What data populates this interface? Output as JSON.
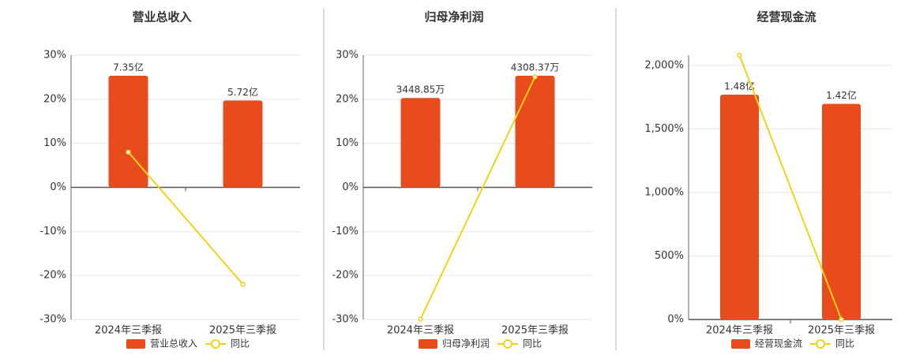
{
  "chart_data": [
    {
      "type": "bar-line",
      "title": "营业总收入",
      "categories": [
        "2024年三季报",
        "2025年三季报"
      ],
      "series": [
        {
          "name": "营业总收入",
          "color": "#e84b1c",
          "axis": "y2",
          "values": [
            7.35,
            5.72
          ],
          "value_labels": [
            "7.35亿",
            "5.72亿"
          ]
        },
        {
          "name": "同比",
          "color": "#f2d21b",
          "values": [
            8.0,
            -22.0
          ]
        }
      ],
      "ylim": [
        -30,
        30
      ],
      "yticks": [
        {
          "value": -30,
          "label": "-30%"
        },
        {
          "value": -20,
          "label": "-20%"
        },
        {
          "value": -10,
          "label": "-10%"
        },
        {
          "value": 0,
          "label": "0%"
        },
        {
          "value": 10,
          "label": "10%"
        },
        {
          "value": 20,
          "label": "20%"
        },
        {
          "value": 30,
          "label": "30%"
        }
      ],
      "y2lim": [
        -8.7,
        8.7
      ],
      "grid": true
    },
    {
      "type": "bar-line",
      "title": "归母净利润",
      "categories": [
        "2024年三季报",
        "2025年三季报"
      ],
      "series": [
        {
          "name": "归母净利润",
          "color": "#e84b1c",
          "axis": "y2",
          "values": [
            3448.85,
            4308.37
          ],
          "value_labels": [
            "3448.85万",
            "4308.37万"
          ]
        },
        {
          "name": "同比",
          "color": "#f2d21b",
          "values": [
            -29.9,
            25.1
          ]
        }
      ],
      "ylim": [
        -30,
        30
      ],
      "yticks": [
        {
          "value": -30,
          "label": "-30%"
        },
        {
          "value": -20,
          "label": "-20%"
        },
        {
          "value": -10,
          "label": "-10%"
        },
        {
          "value": 0,
          "label": "0%"
        },
        {
          "value": 10,
          "label": "10%"
        },
        {
          "value": 20,
          "label": "20%"
        },
        {
          "value": 30,
          "label": "30%"
        }
      ],
      "y2lim": [
        -5100,
        5100
      ],
      "grid": true
    },
    {
      "type": "bar-line",
      "title": "经营现金流",
      "categories": [
        "2024年三季报",
        "2025年三季报"
      ],
      "series": [
        {
          "name": "经营现金流",
          "color": "#e84b1c",
          "axis": "y2",
          "values": [
            1.48,
            1.42
          ],
          "value_labels": [
            "1.48亿",
            "1.42亿"
          ]
        },
        {
          "name": "同比",
          "color": "#f2d21b",
          "values": [
            2080,
            0
          ]
        }
      ],
      "ylim": [
        0,
        2080
      ],
      "yticks": [
        {
          "value": 0,
          "label": "0%"
        },
        {
          "value": 500,
          "label": "500%"
        },
        {
          "value": 1000,
          "label": "1,000%"
        },
        {
          "value": 1500,
          "label": "1,500%"
        },
        {
          "value": 2000,
          "label": "2,000%"
        }
      ],
      "y2lim": [
        0,
        1.74
      ],
      "grid": true
    }
  ]
}
